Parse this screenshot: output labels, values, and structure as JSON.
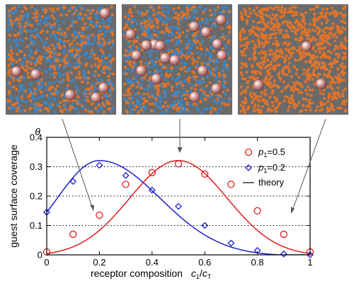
{
  "snapshots": [
    {
      "receptor_colors": [
        "#3f86c6",
        "#e0742a"
      ],
      "guest_count": 6
    },
    {
      "receptor_colors": [
        "#3f86c6",
        "#e0742a"
      ],
      "guest_count": 17
    },
    {
      "receptor_colors": [
        "#e0742a"
      ],
      "guest_count": 3
    }
  ],
  "chart_data": {
    "type": "scatter",
    "xlabel": "receptor composition",
    "xlabel_math": {
      "c1": "c",
      "c1_sub": "1",
      "slash": "/",
      "cT": "c",
      "cT_sub": "T"
    },
    "ylabel": "guest surface coverage",
    "ylabel_symbol": "θ",
    "xlim": [
      0,
      1
    ],
    "ylim": [
      0,
      0.4
    ],
    "x_ticks": [
      "0",
      "0.2",
      "0.4",
      "0.6",
      "0.8",
      "1"
    ],
    "y_ticks": [
      "0",
      "0.1",
      "0.2",
      "0.3",
      "0.4"
    ],
    "grid": "dotted horizontal lines at y = 0.1, 0.2, 0.3",
    "legend_position": "top-right",
    "series": [
      {
        "name": "p1=0.5",
        "name_parts": {
          "p": "p",
          "sub": "1",
          "value": "=0.5"
        },
        "marker": "circle",
        "color": "#e31a1c",
        "x": [
          0,
          0.1,
          0.2,
          0.3,
          0.4,
          0.5,
          0.6,
          0.7,
          0.8,
          0.9,
          1.0
        ],
        "y": [
          0.01,
          0.07,
          0.135,
          0.24,
          0.28,
          0.31,
          0.275,
          0.24,
          0.15,
          0.07,
          0.01
        ]
      },
      {
        "name": "p1=0.2",
        "name_parts": {
          "p": "p",
          "sub": "1",
          "value": "=0.2"
        },
        "marker": "diamond",
        "color": "#1f1fd0",
        "x": [
          0,
          0.1,
          0.2,
          0.3,
          0.4,
          0.5,
          0.6,
          0.7,
          0.8,
          0.9,
          1.0
        ],
        "y": [
          0.145,
          0.25,
          0.305,
          0.27,
          0.22,
          0.165,
          0.1,
          0.04,
          0.015,
          0.003,
          0.0
        ]
      },
      {
        "name": "theory",
        "marker": "line",
        "color": "#000000",
        "curves": [
          {
            "color": "#e31a1c",
            "peak_x": 0.5,
            "peak_y": 0.325
          },
          {
            "color": "#1f1fd0",
            "peak_x": 0.2,
            "peak_y": 0.325
          }
        ]
      }
    ]
  }
}
